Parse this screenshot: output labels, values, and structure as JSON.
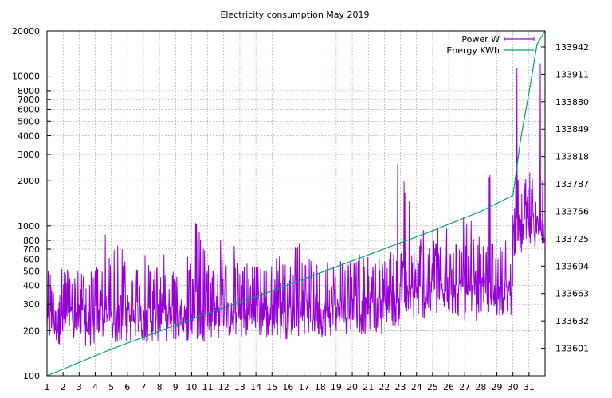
{
  "chart_data": {
    "type": "line",
    "title": "Electricity consumption May 2019",
    "x": {
      "ticks": [
        1,
        2,
        3,
        4,
        5,
        6,
        7,
        8,
        9,
        10,
        11,
        12,
        13,
        14,
        15,
        16,
        17,
        18,
        19,
        20,
        21,
        22,
        23,
        24,
        25,
        26,
        27,
        28,
        29,
        30,
        31
      ],
      "range": [
        1,
        32
      ],
      "unit": "day"
    },
    "y_left": {
      "scale": "log",
      "range": [
        100,
        20000
      ],
      "ticks": [
        100,
        200,
        300,
        400,
        500,
        600,
        700,
        800,
        1000,
        2000,
        3000,
        4000,
        5000,
        6000,
        7000,
        8000,
        10000,
        20000
      ]
    },
    "y_right": {
      "scale": "linear",
      "range": [
        133570,
        133960
      ],
      "ticks": [
        133601,
        133632,
        133663,
        133694,
        133725,
        133756,
        133787,
        133818,
        133849,
        133880,
        133911,
        133942
      ]
    },
    "grid": true,
    "legend_position": "top-right",
    "series": [
      {
        "name": "Power W",
        "axis": "left",
        "color": "#9400d3",
        "style": "impulse-noise",
        "daily_profile": [
          {
            "day": 1,
            "base": 230,
            "peak": 600
          },
          {
            "day": 2,
            "base": 230,
            "peak": 550
          },
          {
            "day": 3,
            "base": 220,
            "peak": 480
          },
          {
            "day": 4,
            "base": 240,
            "peak": 880
          },
          {
            "day": 5,
            "base": 230,
            "peak": 780
          },
          {
            "day": 6,
            "base": 240,
            "peak": 560
          },
          {
            "day": 7,
            "base": 240,
            "peak": 820
          },
          {
            "day": 8,
            "base": 240,
            "peak": 860
          },
          {
            "day": 9,
            "base": 240,
            "peak": 760
          },
          {
            "day": 10,
            "base": 240,
            "peak": 1080
          },
          {
            "day": 11,
            "base": 250,
            "peak": 880
          },
          {
            "day": 12,
            "base": 250,
            "peak": 800
          },
          {
            "day": 13,
            "base": 250,
            "peak": 560
          },
          {
            "day": 14,
            "base": 250,
            "peak": 620
          },
          {
            "day": 15,
            "base": 250,
            "peak": 720
          },
          {
            "day": 16,
            "base": 260,
            "peak": 780
          },
          {
            "day": 17,
            "base": 260,
            "peak": 1040
          },
          {
            "day": 18,
            "base": 260,
            "peak": 680
          },
          {
            "day": 19,
            "base": 270,
            "peak": 840
          },
          {
            "day": 20,
            "base": 270,
            "peak": 700
          },
          {
            "day": 21,
            "base": 270,
            "peak": 580
          },
          {
            "day": 22,
            "base": 300,
            "peak": 2600
          },
          {
            "day": 23,
            "base": 330,
            "peak": 2400
          },
          {
            "day": 24,
            "base": 340,
            "peak": 980
          },
          {
            "day": 25,
            "base": 350,
            "peak": 1100
          },
          {
            "day": 26,
            "base": 350,
            "peak": 1400
          },
          {
            "day": 27,
            "base": 330,
            "peak": 1300
          },
          {
            "day": 28,
            "base": 340,
            "peak": 2400
          },
          {
            "day": 29,
            "base": 350,
            "peak": 2000
          },
          {
            "day": 30,
            "base": 900,
            "peak": 13000
          },
          {
            "day": 31,
            "base": 1000,
            "peak": 13000
          }
        ]
      },
      {
        "name": "Energy KWh",
        "axis": "right",
        "color": "#009e73",
        "style": "line",
        "points": [
          [
            1,
            133570
          ],
          [
            5,
            133600
          ],
          [
            10,
            133634
          ],
          [
            15,
            133666
          ],
          [
            20,
            133700
          ],
          [
            25,
            133734
          ],
          [
            28,
            133756
          ],
          [
            30,
            133774
          ],
          [
            30.5,
            133840
          ],
          [
            31,
            133890
          ],
          [
            31.5,
            133945
          ],
          [
            32,
            133960
          ]
        ]
      }
    ]
  }
}
